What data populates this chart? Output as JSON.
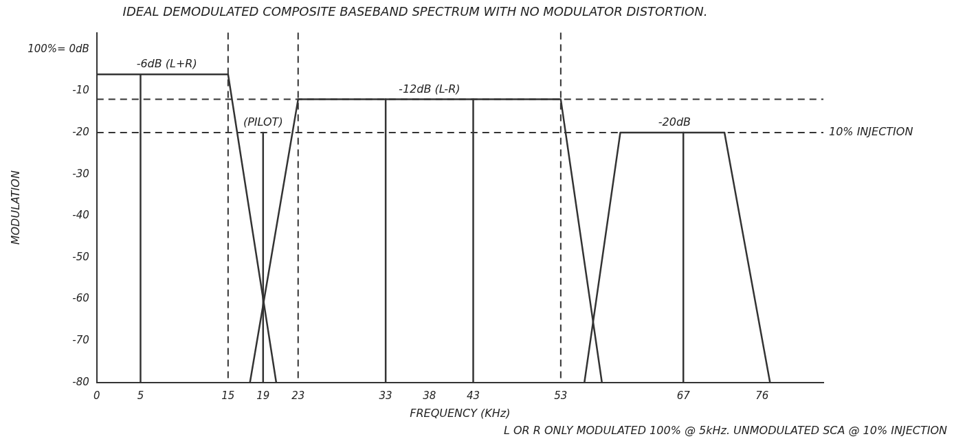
{
  "chart_data": {
    "type": "line",
    "title": "IDEAL DEMODULATED COMPOSITE BASEBAND SPECTRUM WITH NO MODULATOR DISTORTION.",
    "xlabel": "FREQUENCY (KHz)",
    "ylabel": "MODULATION",
    "xlim": [
      0,
      83
    ],
    "xticks": [
      0,
      5,
      15,
      19,
      23,
      33,
      38,
      43,
      53,
      67,
      76
    ],
    "ylim": [
      -80,
      4
    ],
    "yticks": [
      -80,
      -70,
      -60,
      -50,
      -40,
      -30,
      -20,
      -10,
      {
        "value": 0,
        "label": "100%= 0dB"
      }
    ],
    "grid": false,
    "legend": false,
    "marker": "none",
    "line_style": "solid",
    "series": [
      {
        "color": "#333333",
        "x": [
          0,
          15,
          20.5
        ],
        "values": [
          -6,
          -6,
          -80
        ]
      },
      {
        "color": "#333333",
        "x": [
          17.5,
          23,
          53,
          57.7
        ],
        "values": [
          -80,
          -12,
          -12,
          -80
        ]
      },
      {
        "color": "#333333",
        "x": [
          55.7,
          59.8,
          71.7,
          76.9
        ],
        "values": [
          -80,
          -20,
          -20,
          -80
        ]
      },
      {
        "color": "#333333",
        "x": [
          5,
          5
        ],
        "values": [
          -6,
          -80
        ]
      },
      {
        "color": "#333333",
        "x": [
          19,
          19
        ],
        "values": [
          -20,
          -80
        ]
      },
      {
        "color": "#333333",
        "x": [
          33,
          33
        ],
        "values": [
          -12,
          -80
        ]
      },
      {
        "color": "#333333",
        "x": [
          43,
          43
        ],
        "values": [
          -12,
          -80
        ]
      },
      {
        "color": "#333333",
        "x": [
          67,
          67
        ],
        "values": [
          -20,
          -80
        ]
      }
    ],
    "ref_lines": [
      {
        "axis": "y",
        "value": -12,
        "line_style": "dashed",
        "color": "#333333"
      },
      {
        "axis": "y",
        "value": -20,
        "label": "10% INJECTION",
        "line_style": "dashed",
        "color": "#333333"
      },
      {
        "axis": "x",
        "value": 15,
        "line_style": "dashed",
        "color": "#333333"
      },
      {
        "axis": "x",
        "value": 23,
        "line_style": "dashed",
        "color": "#333333"
      },
      {
        "axis": "x",
        "value": 53,
        "line_style": "dashed",
        "color": "#333333"
      }
    ],
    "annotations": [
      {
        "text": "-6dB (L+R)",
        "x": 8,
        "y": -6
      },
      {
        "text": "(PILOT)",
        "x": 19,
        "y": -20
      },
      {
        "text": "-12dB (L-R)",
        "x": 38,
        "y": -12
      },
      {
        "text": "-20dB",
        "x": 66,
        "y": -20
      },
      "L OR R ONLY MODULATED 100% @ 5kHz. UNMODULATED SCA @ 10% INJECTION"
    ]
  }
}
